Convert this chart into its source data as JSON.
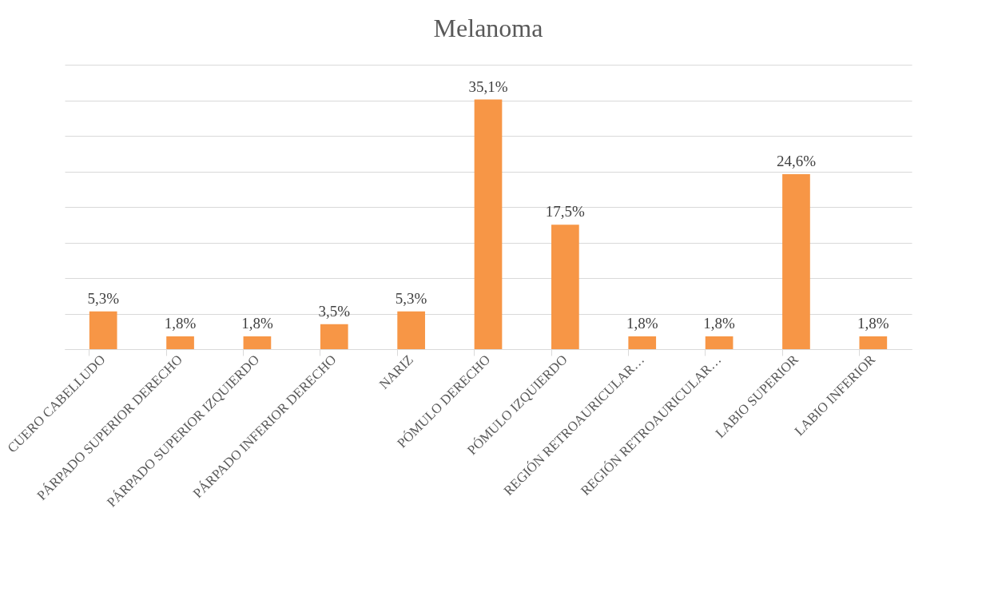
{
  "chart_data": {
    "type": "bar",
    "title": "Melanoma",
    "categories": [
      "CUERO CABELLUDO",
      "PÁRPADO SUPERIOR DERECHO",
      "PÁRPADO SUPERIOR IZQUIERDO",
      "PÁRPADO INFERIOR DERECHO",
      "NARIZ",
      "PÓMULO DERECHO",
      "PÓMULO IZQUIERDO",
      "REGIÓN RETROAURICULAR…",
      "REGIÓN RETROAURICULAR…",
      "LABIO SUPERIOR",
      "LABIO INFERIOR"
    ],
    "values": [
      5.3,
      1.8,
      1.8,
      3.5,
      5.3,
      35.1,
      17.5,
      1.8,
      1.8,
      24.6,
      1.8
    ],
    "value_labels": [
      "5,3%",
      "1,8%",
      "1,8%",
      "3,5%",
      "5,3%",
      "35,1%",
      "17,5%",
      "1,8%",
      "1,8%",
      "24,6%",
      "1,8%"
    ],
    "color": "#f79646",
    "ylim": [
      0,
      40
    ],
    "yticks": [
      {
        "value": 0,
        "label": null
      },
      {
        "value": 5,
        "label": null
      },
      {
        "value": 10,
        "label": null
      },
      {
        "value": 15,
        "label": null
      },
      {
        "value": 20,
        "label": null
      },
      {
        "value": 25,
        "label": null
      },
      {
        "value": 30,
        "label": null
      },
      {
        "value": 35,
        "label": null
      },
      {
        "value": 40,
        "label": null
      }
    ],
    "tick_labels": "x",
    "grid": "y"
  }
}
